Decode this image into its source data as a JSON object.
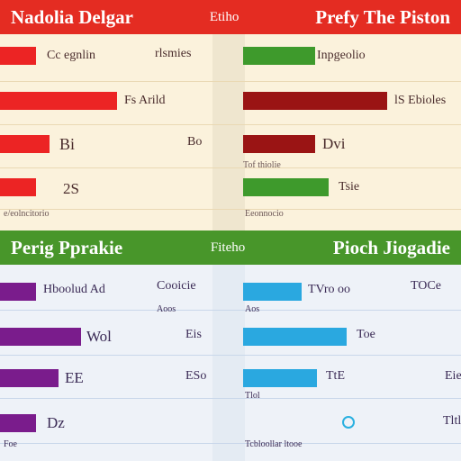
{
  "chart_data": [
    {
      "type": "bar",
      "title": "Nadolia Delgar",
      "subtitle": "Etiho",
      "right_title": "Prefy The Piston",
      "colors": {
        "header": "#e42c22",
        "panel": "#fbf2dc"
      },
      "left_series": {
        "color": "#ec2424",
        "alt_color": "#ec2424",
        "bars": [
          {
            "value": 40,
            "label": "Cc egnlin",
            "right_label": "rlsmies"
          },
          {
            "value": 130,
            "label": "",
            "right_label": "Fs   Arild"
          },
          {
            "value": 55,
            "label": "Bi",
            "right_label": "Bo"
          },
          {
            "value": 40,
            "label": "2S",
            "right_label": ""
          }
        ],
        "footer": "e/eolncitorio"
      },
      "right_series": {
        "bars": [
          {
            "value": 80,
            "color": "#3e9a2c",
            "label": "Inpgeolio"
          },
          {
            "value": 160,
            "color": "#9a1414",
            "label": "lS   Ebioles"
          },
          {
            "value": 80,
            "color": "#9a1414",
            "label": "Dvi",
            "sub": "Tof thiolie"
          },
          {
            "value": 95,
            "color": "#3e9a2c",
            "label": "Tsie",
            "sub": "Eeonnocio"
          }
        ]
      }
    },
    {
      "type": "bar",
      "title": "Perig Pprakie",
      "subtitle": "Fiteho",
      "right_title": "Pioch Jiogadie",
      "colors": {
        "header": "#48962a",
        "panel": "#eef2f8"
      },
      "left_series": {
        "color": "#7a1c8c",
        "bars": [
          {
            "value": 40,
            "label": "Hboolud Ad",
            "right_label": "Cooicie",
            "sub": "Aoos"
          },
          {
            "value": 90,
            "label": "Wol",
            "right_label": "Eis"
          },
          {
            "value": 65,
            "label": "EE",
            "right_label": "ESo"
          },
          {
            "value": 40,
            "label": "Dz",
            "right_label": ""
          }
        ],
        "footer": "Foe"
      },
      "right_series": {
        "color": "#2aa8e0",
        "bars": [
          {
            "value": 65,
            "label": "TVro oo",
            "right_label": "TOCe",
            "sub": "Aos"
          },
          {
            "value": 115,
            "label": "Toe",
            "right_label": ""
          },
          {
            "value": 82,
            "label": "TtE",
            "right_label": "Eie",
            "sub": "Tlol"
          },
          {
            "value": 95,
            "label": "",
            "right_label": "Tltle",
            "sub": "Tcbloollar ltooe"
          }
        ]
      }
    }
  ]
}
